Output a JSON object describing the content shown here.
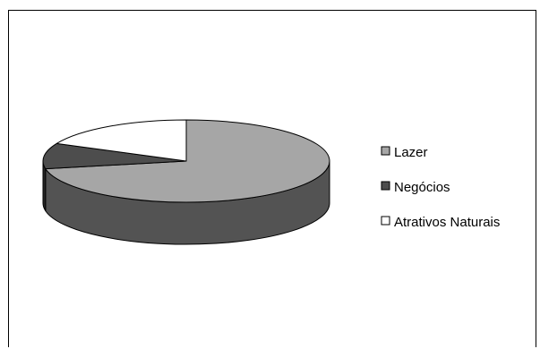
{
  "chart_data": {
    "type": "pie",
    "style": "3d",
    "categories": [
      "Lazer",
      "Negócios",
      "Atrativos Naturais"
    ],
    "values": [
      72,
      10,
      18
    ],
    "colors": [
      "#a6a6a6",
      "#4d4d4d",
      "#ffffff"
    ],
    "legend_position": "right",
    "grid": false
  }
}
